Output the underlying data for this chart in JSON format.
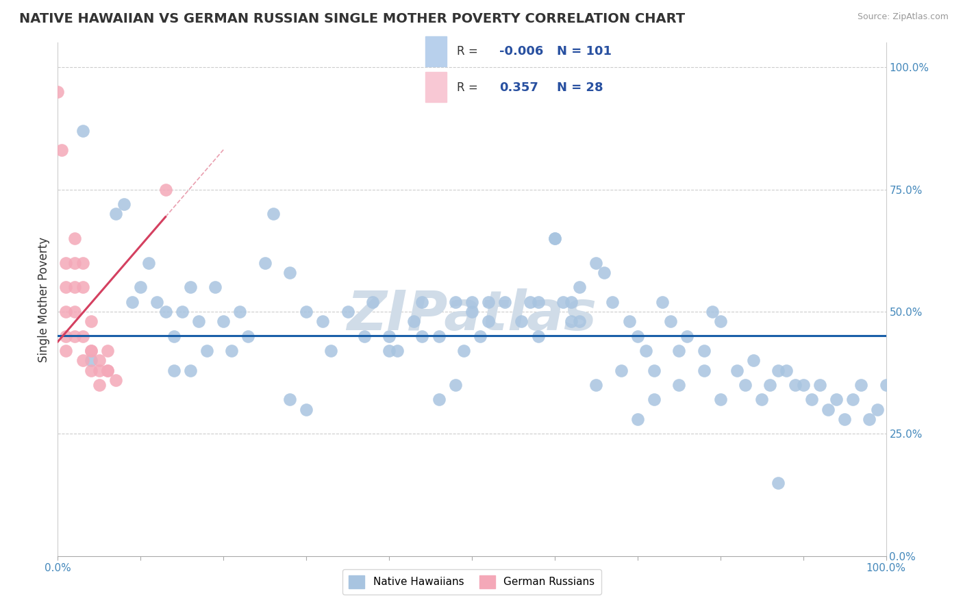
{
  "title": "NATIVE HAWAIIAN VS GERMAN RUSSIAN SINGLE MOTHER POVERTY CORRELATION CHART",
  "source": "Source: ZipAtlas.com",
  "ylabel": "Single Mother Poverty",
  "xlim": [
    0,
    1
  ],
  "ylim": [
    0,
    1.05
  ],
  "blue_R": -0.006,
  "blue_N": 101,
  "pink_R": 0.357,
  "pink_N": 28,
  "blue_color": "#a8c4e0",
  "pink_color": "#f4a8b8",
  "blue_line_color": "#1a5fa8",
  "pink_line_color": "#d44060",
  "blue_legend_color": "#b8d0ec",
  "pink_legend_color": "#f8c8d4",
  "legend_text_color": "#2850a0",
  "watermark_color": "#d0dce8",
  "background_color": "#ffffff",
  "grid_color": "#cccccc",
  "blue_x": [
    0.03,
    0.04,
    0.07,
    0.08,
    0.09,
    0.1,
    0.11,
    0.12,
    0.13,
    0.14,
    0.15,
    0.16,
    0.17,
    0.18,
    0.19,
    0.2,
    0.21,
    0.22,
    0.23,
    0.25,
    0.26,
    0.28,
    0.3,
    0.32,
    0.33,
    0.35,
    0.37,
    0.38,
    0.4,
    0.41,
    0.43,
    0.44,
    0.46,
    0.48,
    0.49,
    0.5,
    0.51,
    0.52,
    0.54,
    0.56,
    0.58,
    0.6,
    0.61,
    0.62,
    0.63,
    0.65,
    0.66,
    0.67,
    0.69,
    0.7,
    0.71,
    0.72,
    0.73,
    0.74,
    0.75,
    0.76,
    0.78,
    0.79,
    0.8,
    0.82,
    0.83,
    0.84,
    0.85,
    0.86,
    0.87,
    0.88,
    0.89,
    0.9,
    0.91,
    0.92,
    0.93,
    0.94,
    0.95,
    0.96,
    0.97,
    0.98,
    0.99,
    1.0,
    0.14,
    0.16,
    0.28,
    0.3,
    0.4,
    0.44,
    0.46,
    0.48,
    0.5,
    0.52,
    0.57,
    0.58,
    0.6,
    0.62,
    0.63,
    0.65,
    0.68,
    0.7,
    0.72,
    0.75,
    0.78,
    0.8,
    0.87
  ],
  "blue_y": [
    0.87,
    0.4,
    0.7,
    0.72,
    0.52,
    0.55,
    0.6,
    0.52,
    0.5,
    0.45,
    0.5,
    0.55,
    0.48,
    0.42,
    0.55,
    0.48,
    0.42,
    0.5,
    0.45,
    0.6,
    0.7,
    0.58,
    0.5,
    0.48,
    0.42,
    0.5,
    0.45,
    0.52,
    0.45,
    0.42,
    0.48,
    0.52,
    0.45,
    0.52,
    0.42,
    0.5,
    0.45,
    0.52,
    0.52,
    0.48,
    0.45,
    0.65,
    0.52,
    0.48,
    0.55,
    0.6,
    0.58,
    0.52,
    0.48,
    0.45,
    0.42,
    0.38,
    0.52,
    0.48,
    0.42,
    0.45,
    0.42,
    0.5,
    0.48,
    0.38,
    0.35,
    0.4,
    0.32,
    0.35,
    0.38,
    0.38,
    0.35,
    0.35,
    0.32,
    0.35,
    0.3,
    0.32,
    0.28,
    0.32,
    0.35,
    0.28,
    0.3,
    0.35,
    0.38,
    0.38,
    0.32,
    0.3,
    0.42,
    0.45,
    0.32,
    0.35,
    0.52,
    0.48,
    0.52,
    0.52,
    0.65,
    0.52,
    0.48,
    0.35,
    0.38,
    0.28,
    0.32,
    0.35,
    0.38,
    0.32,
    0.15
  ],
  "pink_x": [
    0.0,
    0.005,
    0.01,
    0.01,
    0.01,
    0.01,
    0.01,
    0.02,
    0.02,
    0.02,
    0.02,
    0.02,
    0.03,
    0.03,
    0.03,
    0.03,
    0.04,
    0.04,
    0.04,
    0.04,
    0.05,
    0.05,
    0.05,
    0.06,
    0.06,
    0.06,
    0.07,
    0.13
  ],
  "pink_y": [
    0.95,
    0.83,
    0.6,
    0.55,
    0.5,
    0.45,
    0.42,
    0.65,
    0.6,
    0.55,
    0.5,
    0.45,
    0.4,
    0.55,
    0.6,
    0.45,
    0.38,
    0.42,
    0.48,
    0.42,
    0.4,
    0.38,
    0.35,
    0.38,
    0.42,
    0.38,
    0.36,
    0.75
  ],
  "xticks": [
    0.0,
    0.1,
    0.2,
    0.3,
    0.4,
    0.5,
    0.6,
    0.7,
    0.8,
    0.9,
    1.0
  ],
  "yticks": [
    0.0,
    0.25,
    0.5,
    0.75,
    1.0
  ]
}
